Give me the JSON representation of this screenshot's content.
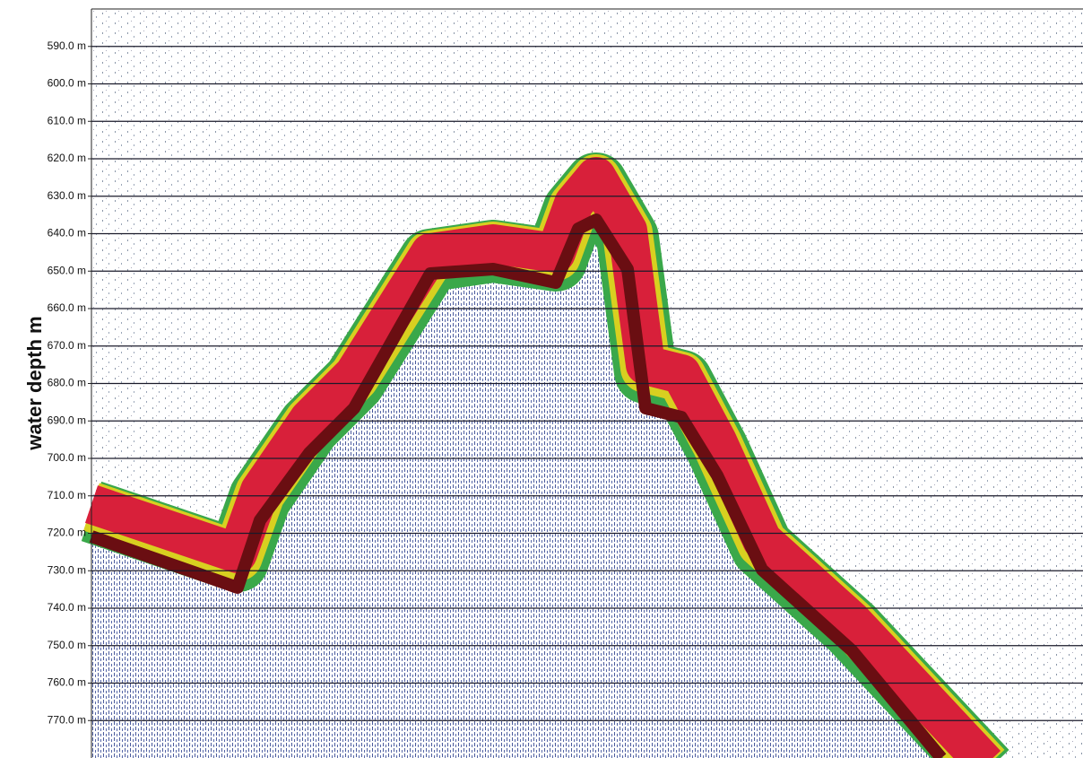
{
  "chart_data": {
    "type": "echogram",
    "y_label": "water depth m",
    "ylim": [
      580,
      780
    ],
    "y_inverted": true,
    "yticks": [
      {
        "value": 590,
        "label": "590.0 m"
      },
      {
        "value": 600,
        "label": "600.0 m"
      },
      {
        "value": 610,
        "label": "610.0 m"
      },
      {
        "value": 620,
        "label": "620.0 m"
      },
      {
        "value": 630,
        "label": "630.0 m"
      },
      {
        "value": 640,
        "label": "640.0 m"
      },
      {
        "value": 650,
        "label": "650.0 m"
      },
      {
        "value": 660,
        "label": "660.0 m"
      },
      {
        "value": 670,
        "label": "670.0 m"
      },
      {
        "value": 680,
        "label": "680.0 m"
      },
      {
        "value": 690,
        "label": "690.0 m"
      },
      {
        "value": 700,
        "label": "700.0 m"
      },
      {
        "value": 710,
        "label": "710.0 m"
      },
      {
        "value": 720,
        "label": "720.0 m"
      },
      {
        "value": 730,
        "label": "730.0 m"
      },
      {
        "value": 740,
        "label": "740.0 m"
      },
      {
        "value": 750,
        "label": "750.0 m"
      },
      {
        "value": 760,
        "label": "760.0 m"
      },
      {
        "value": 770,
        "label": "770.0 m"
      }
    ],
    "grid": true
  }
}
